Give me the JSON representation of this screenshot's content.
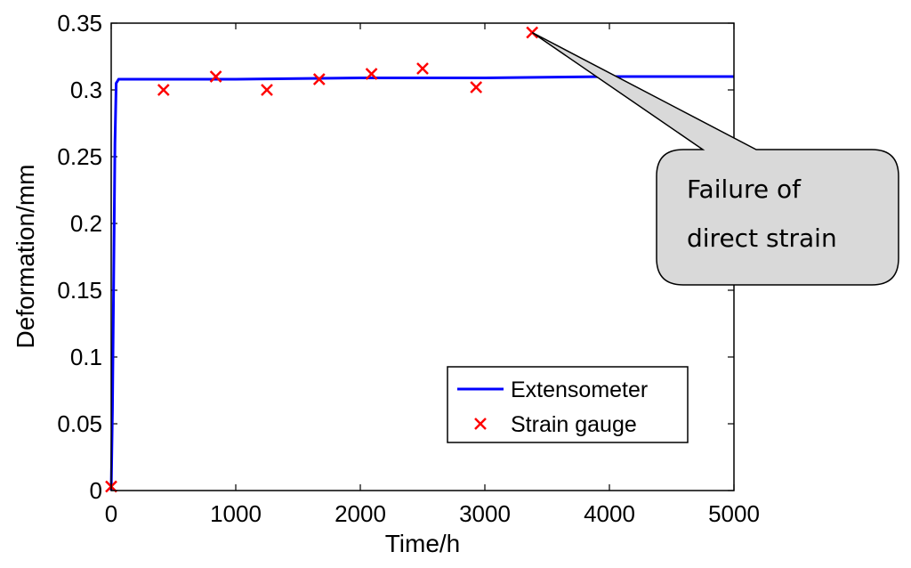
{
  "chart_data": {
    "type": "line",
    "xlabel": "Time/h",
    "ylabel": "Deformation/mm",
    "xlim": [
      0,
      5000
    ],
    "ylim": [
      0,
      0.35
    ],
    "x_ticks": [
      0,
      1000,
      2000,
      3000,
      4000,
      5000
    ],
    "y_ticks": [
      0,
      0.05,
      0.1,
      0.15,
      0.2,
      0.25,
      0.3,
      0.35
    ],
    "x_tick_labels": [
      "0",
      "1000",
      "2000",
      "3000",
      "4000",
      "5000"
    ],
    "y_tick_labels": [
      "0",
      "0.05",
      "0.1",
      "0.15",
      "0.2",
      "0.25",
      "0.3",
      "0.35"
    ],
    "grid": false,
    "legend_position": "bottom-right",
    "series": [
      {
        "name": "Extensometer",
        "style": "line",
        "color": "#0000ff",
        "x": [
          0,
          10,
          20,
          30,
          40,
          60,
          500,
          1000,
          2000,
          3000,
          4000,
          5000
        ],
        "y": [
          0,
          0.06,
          0.16,
          0.26,
          0.305,
          0.308,
          0.308,
          0.308,
          0.309,
          0.309,
          0.31,
          0.31
        ]
      },
      {
        "name": "Strain gauge",
        "style": "marker-x",
        "color": "#ff0000",
        "x": [
          0,
          420,
          840,
          1250,
          1670,
          2090,
          2500,
          2930,
          3380
        ],
        "y": [
          0.003,
          0.3,
          0.31,
          0.3,
          0.308,
          0.312,
          0.316,
          0.302,
          0.343
        ]
      }
    ],
    "annotation": {
      "text_lines": [
        "Failure of",
        "direct strain"
      ],
      "target": {
        "x": 3380,
        "y": 0.343
      },
      "fill": "#d9d9d9"
    }
  }
}
